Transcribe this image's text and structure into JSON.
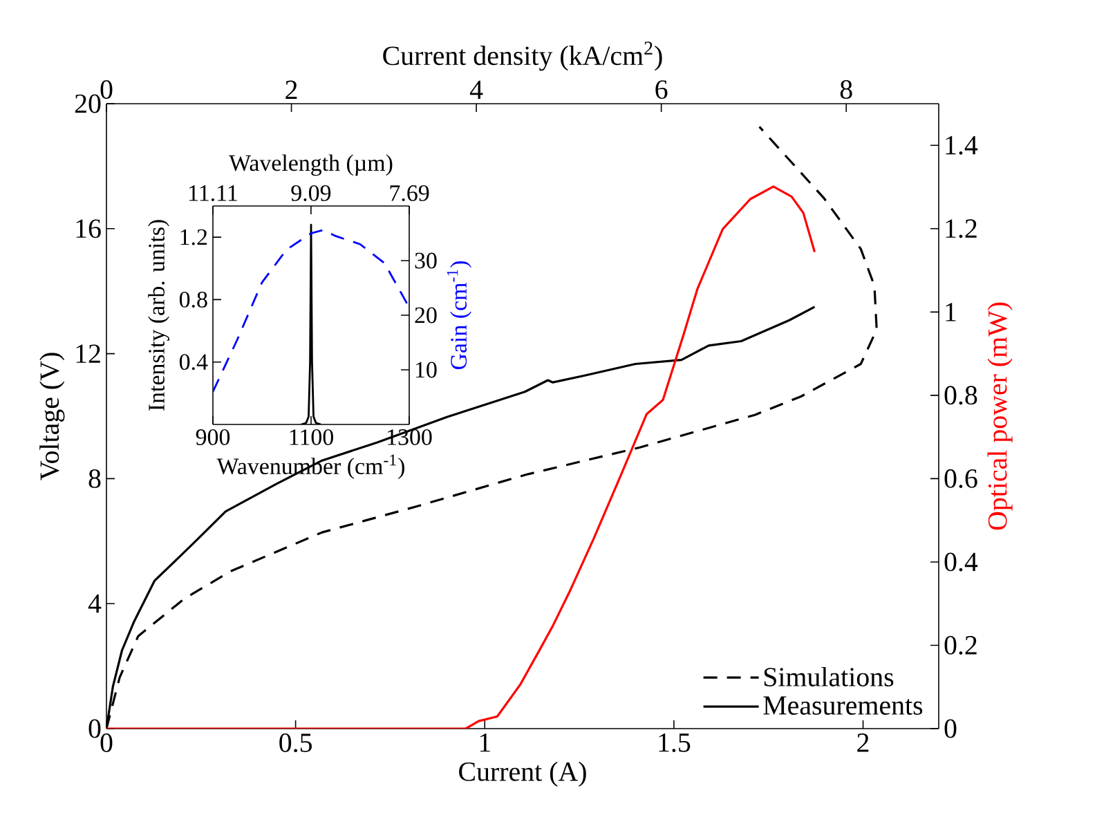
{
  "chart_data": [
    {
      "type": "line",
      "xlabel": "Current (A)",
      "ylabel": "Voltage (V)",
      "y2label": "Optical power (mW)",
      "x2label": "Current density (kA/cm$^{2}$)",
      "xlim": [
        0,
        2.2
      ],
      "xticks": [
        0,
        0.5,
        1,
        1.5,
        2
      ],
      "ylim": [
        0,
        20
      ],
      "yticks": [
        0,
        4,
        8,
        12,
        16,
        20
      ],
      "y2lim": [
        0,
        1.5
      ],
      "y2ticks": [
        0,
        0.2,
        0.4,
        0.6,
        0.8,
        1,
        1.2,
        1.4
      ],
      "x2lim": [
        0,
        9
      ],
      "x2ticks": [
        0,
        2,
        4,
        6,
        8
      ],
      "legend": "bottom right",
      "series": [
        {
          "name": "Simulations",
          "color": "#000000",
          "line_style": "dashed",
          "x": [
            0,
            0.035,
            0.084,
            0.205,
            0.327,
            0.57,
            0.814,
            1.11,
            1.41,
            1.714,
            1.836,
            1.994,
            2.036,
            2.03,
            1.994,
            1.897,
            1.726
          ],
          "values": [
            0,
            1.64,
            2.96,
            4.15,
            5.03,
            6.28,
            7.09,
            8.13,
            9.0,
            10.04,
            10.63,
            11.67,
            12.77,
            14.17,
            15.35,
            16.97,
            19.26
          ]
        },
        {
          "name": "Measurements",
          "color": "#000000",
          "line_style": "solid",
          "x": [
            0,
            0.017,
            0.041,
            0.072,
            0.127,
            0.23,
            0.315,
            0.449,
            0.57,
            0.716,
            0.9,
            1.106,
            1.167,
            1.18,
            1.264,
            1.398,
            1.52,
            1.592,
            1.678,
            1.805,
            1.872
          ],
          "values": [
            0,
            1.34,
            2.5,
            3.4,
            4.73,
            5.93,
            6.95,
            7.83,
            8.58,
            9.16,
            9.97,
            10.78,
            11.15,
            11.08,
            11.3,
            11.67,
            11.8,
            12.26,
            12.4,
            13.07,
            13.5
          ]
        },
        {
          "color": "#ff0000",
          "line_style": "solid",
          "axis": "y2",
          "x": [
            0,
            0.2,
            0.5,
            0.8,
            0.95,
            0.984,
            1.033,
            1.094,
            1.142,
            1.179,
            1.227,
            1.288,
            1.361,
            1.428,
            1.471,
            1.525,
            1.562,
            1.629,
            1.702,
            1.763,
            1.811,
            1.842,
            1.872
          ],
          "values": [
            0,
            0,
            0,
            0,
            0,
            0.018,
            0.029,
            0.106,
            0.184,
            0.245,
            0.334,
            0.456,
            0.611,
            0.755,
            0.789,
            0.944,
            1.055,
            1.199,
            1.271,
            1.301,
            1.277,
            1.238,
            1.144
          ]
        }
      ]
    },
    {
      "type": "line",
      "xlabel": "Wavenumber (cm$^{-1}$)",
      "ylabel": "Intensity (arb. units)",
      "y2label": "Gain (cm$^{-1}$)",
      "x2label": "Wavelength (µm)",
      "xlim": [
        900,
        1300
      ],
      "xticks": [
        900,
        1100,
        1300
      ],
      "ylim": [
        0,
        1.4
      ],
      "yticks": [
        0.4,
        0.8,
        1.2
      ],
      "y2lim": [
        0,
        40
      ],
      "y2ticks": [
        10,
        20,
        30
      ],
      "x2lim": [
        11.11,
        7.69
      ],
      "x2ticks": [
        11.11,
        9.09,
        7.69
      ],
      "series": [
        {
          "color": "#000000",
          "line_style": "solid",
          "x": [
            1080,
            1090,
            1095,
            1098,
            1100,
            1102,
            1105,
            1110,
            1120
          ],
          "values": [
            0,
            0.01,
            0.05,
            0.4,
            1.28,
            0.4,
            0.05,
            0.01,
            0
          ]
        },
        {
          "color": "#0000ff",
          "line_style": "dashed",
          "axis": "y2",
          "x": [
            900,
            950,
            1000,
            1050,
            1100,
            1125,
            1150,
            1200,
            1250,
            1300
          ],
          "values": [
            6,
            15.6,
            26,
            32,
            35,
            35.6,
            34.5,
            33,
            29.5,
            21.4
          ]
        }
      ]
    }
  ]
}
